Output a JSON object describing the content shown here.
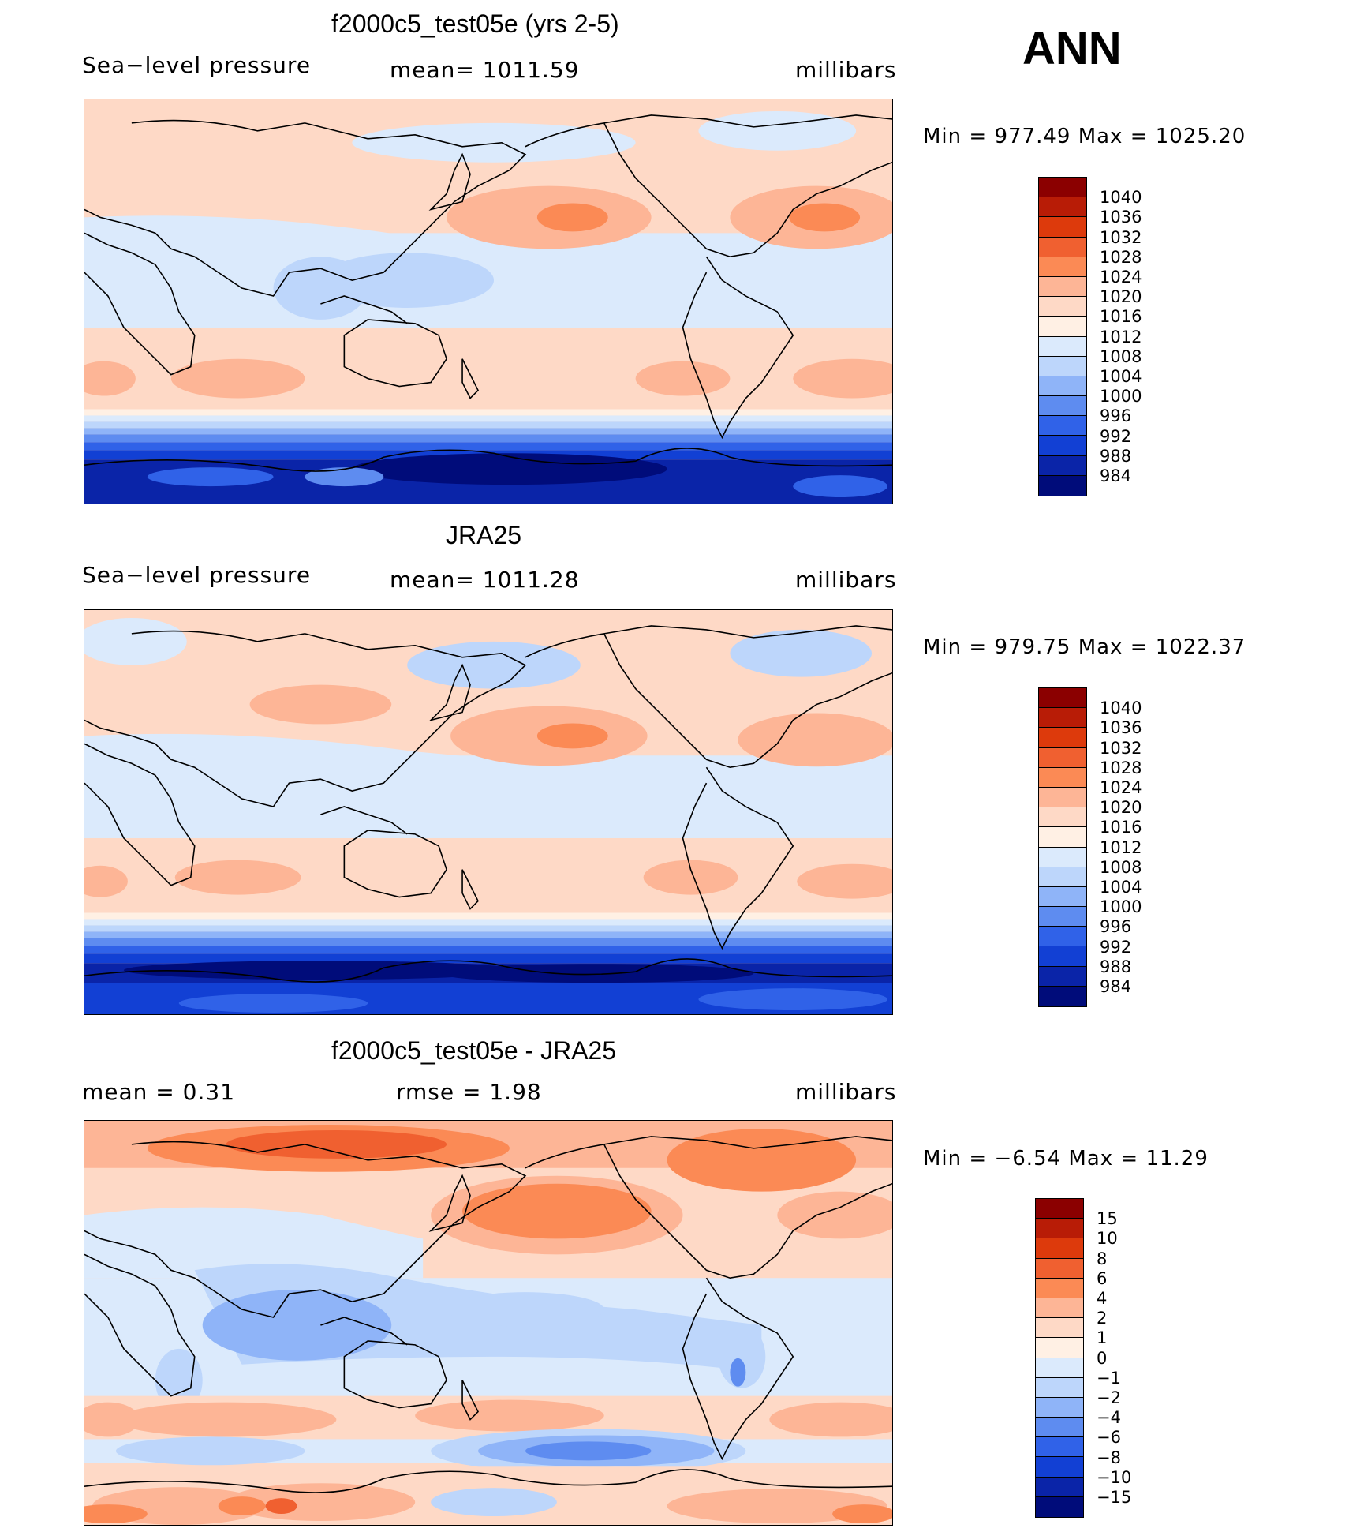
{
  "season": "ANN",
  "panels": [
    {
      "title": "f2000c5_test05e (yrs 2-5)",
      "variable": "Sea−level pressure",
      "mean_text": "mean=  1011.59",
      "units": "millibars",
      "range_text": "Min  =  977.49  Max  =  1025.20",
      "colorbar_labels": [
        "1040",
        "1036",
        "1032",
        "1028",
        "1024",
        "1020",
        "1016",
        "1012",
        "1008",
        "1004",
        "1000",
        "996",
        "992",
        "988",
        "984"
      ],
      "colorbar_colors": [
        "#8b0000",
        "#b81c06",
        "#dd3a0c",
        "#f06030",
        "#fb8a55",
        "#fdb596",
        "#fed9c6",
        "#fff0e4",
        "#dbeafc",
        "#bdd6fb",
        "#8fb4f8",
        "#5e8cf0",
        "#3062e8",
        "#1240d4",
        "#0a24a8",
        "#000c7a"
      ]
    },
    {
      "title": "JRA25",
      "variable": "Sea−level pressure",
      "mean_text": "mean=  1011.28",
      "units": "millibars",
      "range_text": "Min  =  979.75  Max  =  1022.37",
      "colorbar_labels": [
        "1040",
        "1036",
        "1032",
        "1028",
        "1024",
        "1020",
        "1016",
        "1012",
        "1008",
        "1004",
        "1000",
        "996",
        "992",
        "988",
        "984"
      ],
      "colorbar_colors": [
        "#8b0000",
        "#b81c06",
        "#dd3a0c",
        "#f06030",
        "#fb8a55",
        "#fdb596",
        "#fed9c6",
        "#fff0e4",
        "#dbeafc",
        "#bdd6fb",
        "#8fb4f8",
        "#5e8cf0",
        "#3062e8",
        "#1240d4",
        "#0a24a8",
        "#000c7a"
      ]
    },
    {
      "title": "f2000c5_test05e - JRA25",
      "mean_text": "mean  =     0.31",
      "rmse_text": "rmse  =     1.98",
      "units": "millibars",
      "range_text": "Min  =   −6.54  Max  =    11.29",
      "colorbar_labels": [
        "15",
        "10",
        "8",
        "6",
        "4",
        "2",
        "1",
        "0",
        "−1",
        "−2",
        "−4",
        "−6",
        "−8",
        "−10",
        "−15"
      ],
      "colorbar_colors": [
        "#8b0000",
        "#b81c06",
        "#dd3a0c",
        "#f06030",
        "#fb8a55",
        "#fdb596",
        "#fed9c6",
        "#fff0e4",
        "#dbeafc",
        "#bdd6fb",
        "#8fb4f8",
        "#5e8cf0",
        "#3062e8",
        "#1240d4",
        "#0a24a8",
        "#000c7a"
      ]
    }
  ]
}
